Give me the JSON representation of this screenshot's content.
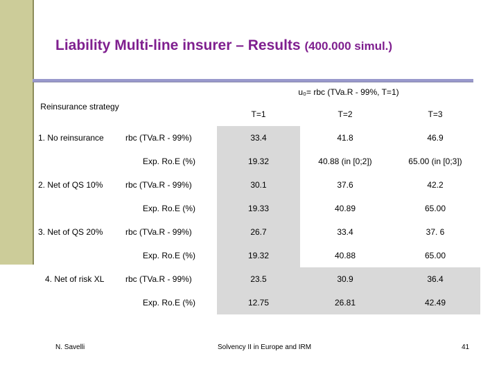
{
  "title": {
    "part1": "Liability",
    "part2": "Multi-line insurer – Results",
    "part3": "(400.000 simul.)"
  },
  "table": {
    "strategy_header": "Reinsurance strategy",
    "group_header": "u₀= rbc (TVa.R - 99%, T=1)",
    "columns": [
      "T=1",
      "T=2",
      "T=3"
    ],
    "rows": [
      {
        "strategy": "1. No reinsurance",
        "measure": "rbc (TVa.R - 99%)",
        "values": [
          "33.4",
          "41.8",
          "46.9"
        ]
      },
      {
        "strategy": "",
        "measure": "Exp. Ro.E (%)",
        "values": [
          "19.32",
          "40.88 (in [0;2])",
          "65.00 (in [0;3])"
        ]
      },
      {
        "strategy": "2. Net of QS 10%",
        "measure": "rbc (TVa.R - 99%)",
        "values": [
          "30.1",
          "37.6",
          "42.2"
        ]
      },
      {
        "strategy": "",
        "measure": "Exp. Ro.E (%)",
        "values": [
          "19.33",
          "40.89",
          "65.00"
        ]
      },
      {
        "strategy": "3. Net of QS 20%",
        "measure": "rbc (TVa.R - 99%)",
        "values": [
          "26.7",
          "33.4",
          "37. 6"
        ]
      },
      {
        "strategy": "",
        "measure": "Exp. Ro.E (%)",
        "values": [
          "19.32",
          "40.88",
          "65.00"
        ]
      },
      {
        "strategy": "4. Net of risk XL",
        "measure": "rbc (TVa.R - 99%)",
        "values": [
          "23.5",
          "30.9",
          "36.4"
        ]
      },
      {
        "strategy": "",
        "measure": "Exp. Ro.E (%)",
        "values": [
          "12.75",
          "26.81",
          "42.49"
        ]
      }
    ]
  },
  "footer": {
    "author": "N. Savelli",
    "center": "Solvency II in Europe and IRM",
    "page": "41"
  },
  "colors": {
    "title": "#7f1f8f",
    "sidebar": "#cccc99",
    "rule": "#9999cc",
    "shaded_cell": "#d9d9d9"
  }
}
